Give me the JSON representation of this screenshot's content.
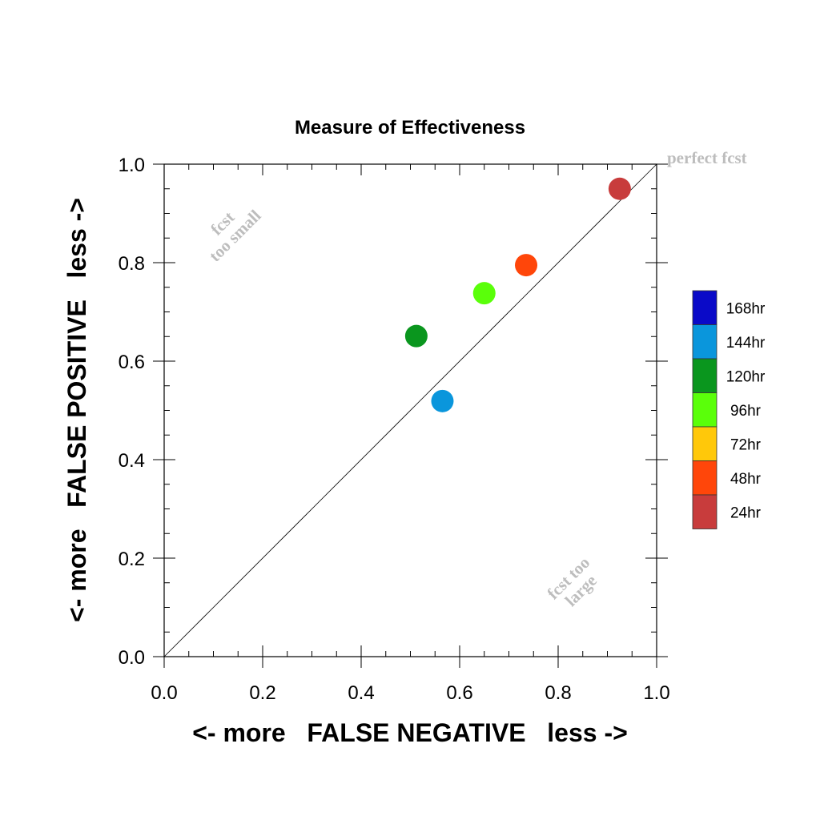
{
  "chart_data": {
    "type": "scatter",
    "title": "Measure of Effectiveness",
    "xlabel": "<- more   FALSE NEGATIVE   less ->",
    "ylabel": "<- more   FALSE POSITIVE   less ->",
    "xlim": [
      0.0,
      1.0
    ],
    "ylim": [
      0.0,
      1.0
    ],
    "xticks": [
      "0.0",
      "0.2",
      "0.4",
      "0.6",
      "0.8",
      "1.0"
    ],
    "yticks": [
      "0.0",
      "0.2",
      "0.4",
      "0.6",
      "0.8",
      "1.0"
    ],
    "diagonal_line": true,
    "grid": false,
    "legend_placement": "right",
    "annotations": {
      "perfect": "perfect fcst",
      "too_small": [
        "fcst",
        "too small"
      ],
      "too_large": [
        "fcst too",
        "large"
      ]
    },
    "legend": [
      {
        "label": "168hr",
        "color": "#0a0ac8"
      },
      {
        "label": "144hr",
        "color": "#0a96dc"
      },
      {
        "label": "120hr",
        "color": "#0a961e"
      },
      {
        "label": "96hr",
        "color": "#5aff0a"
      },
      {
        "label": "72hr",
        "color": "#ffc80a"
      },
      {
        "label": "48hr",
        "color": "#ff460a"
      },
      {
        "label": "24hr",
        "color": "#c83c3c"
      }
    ],
    "points": [
      {
        "label": "24hr",
        "x": 0.925,
        "y": 0.95,
        "color": "#c83c3c"
      },
      {
        "label": "48hr",
        "x": 0.735,
        "y": 0.795,
        "color": "#ff460a"
      },
      {
        "label": "96hr",
        "x": 0.65,
        "y": 0.738,
        "color": "#5aff0a"
      },
      {
        "label": "120hr",
        "x": 0.512,
        "y": 0.651,
        "color": "#0a961e"
      },
      {
        "label": "144hr",
        "x": 0.565,
        "y": 0.519,
        "color": "#0a96dc"
      }
    ]
  }
}
